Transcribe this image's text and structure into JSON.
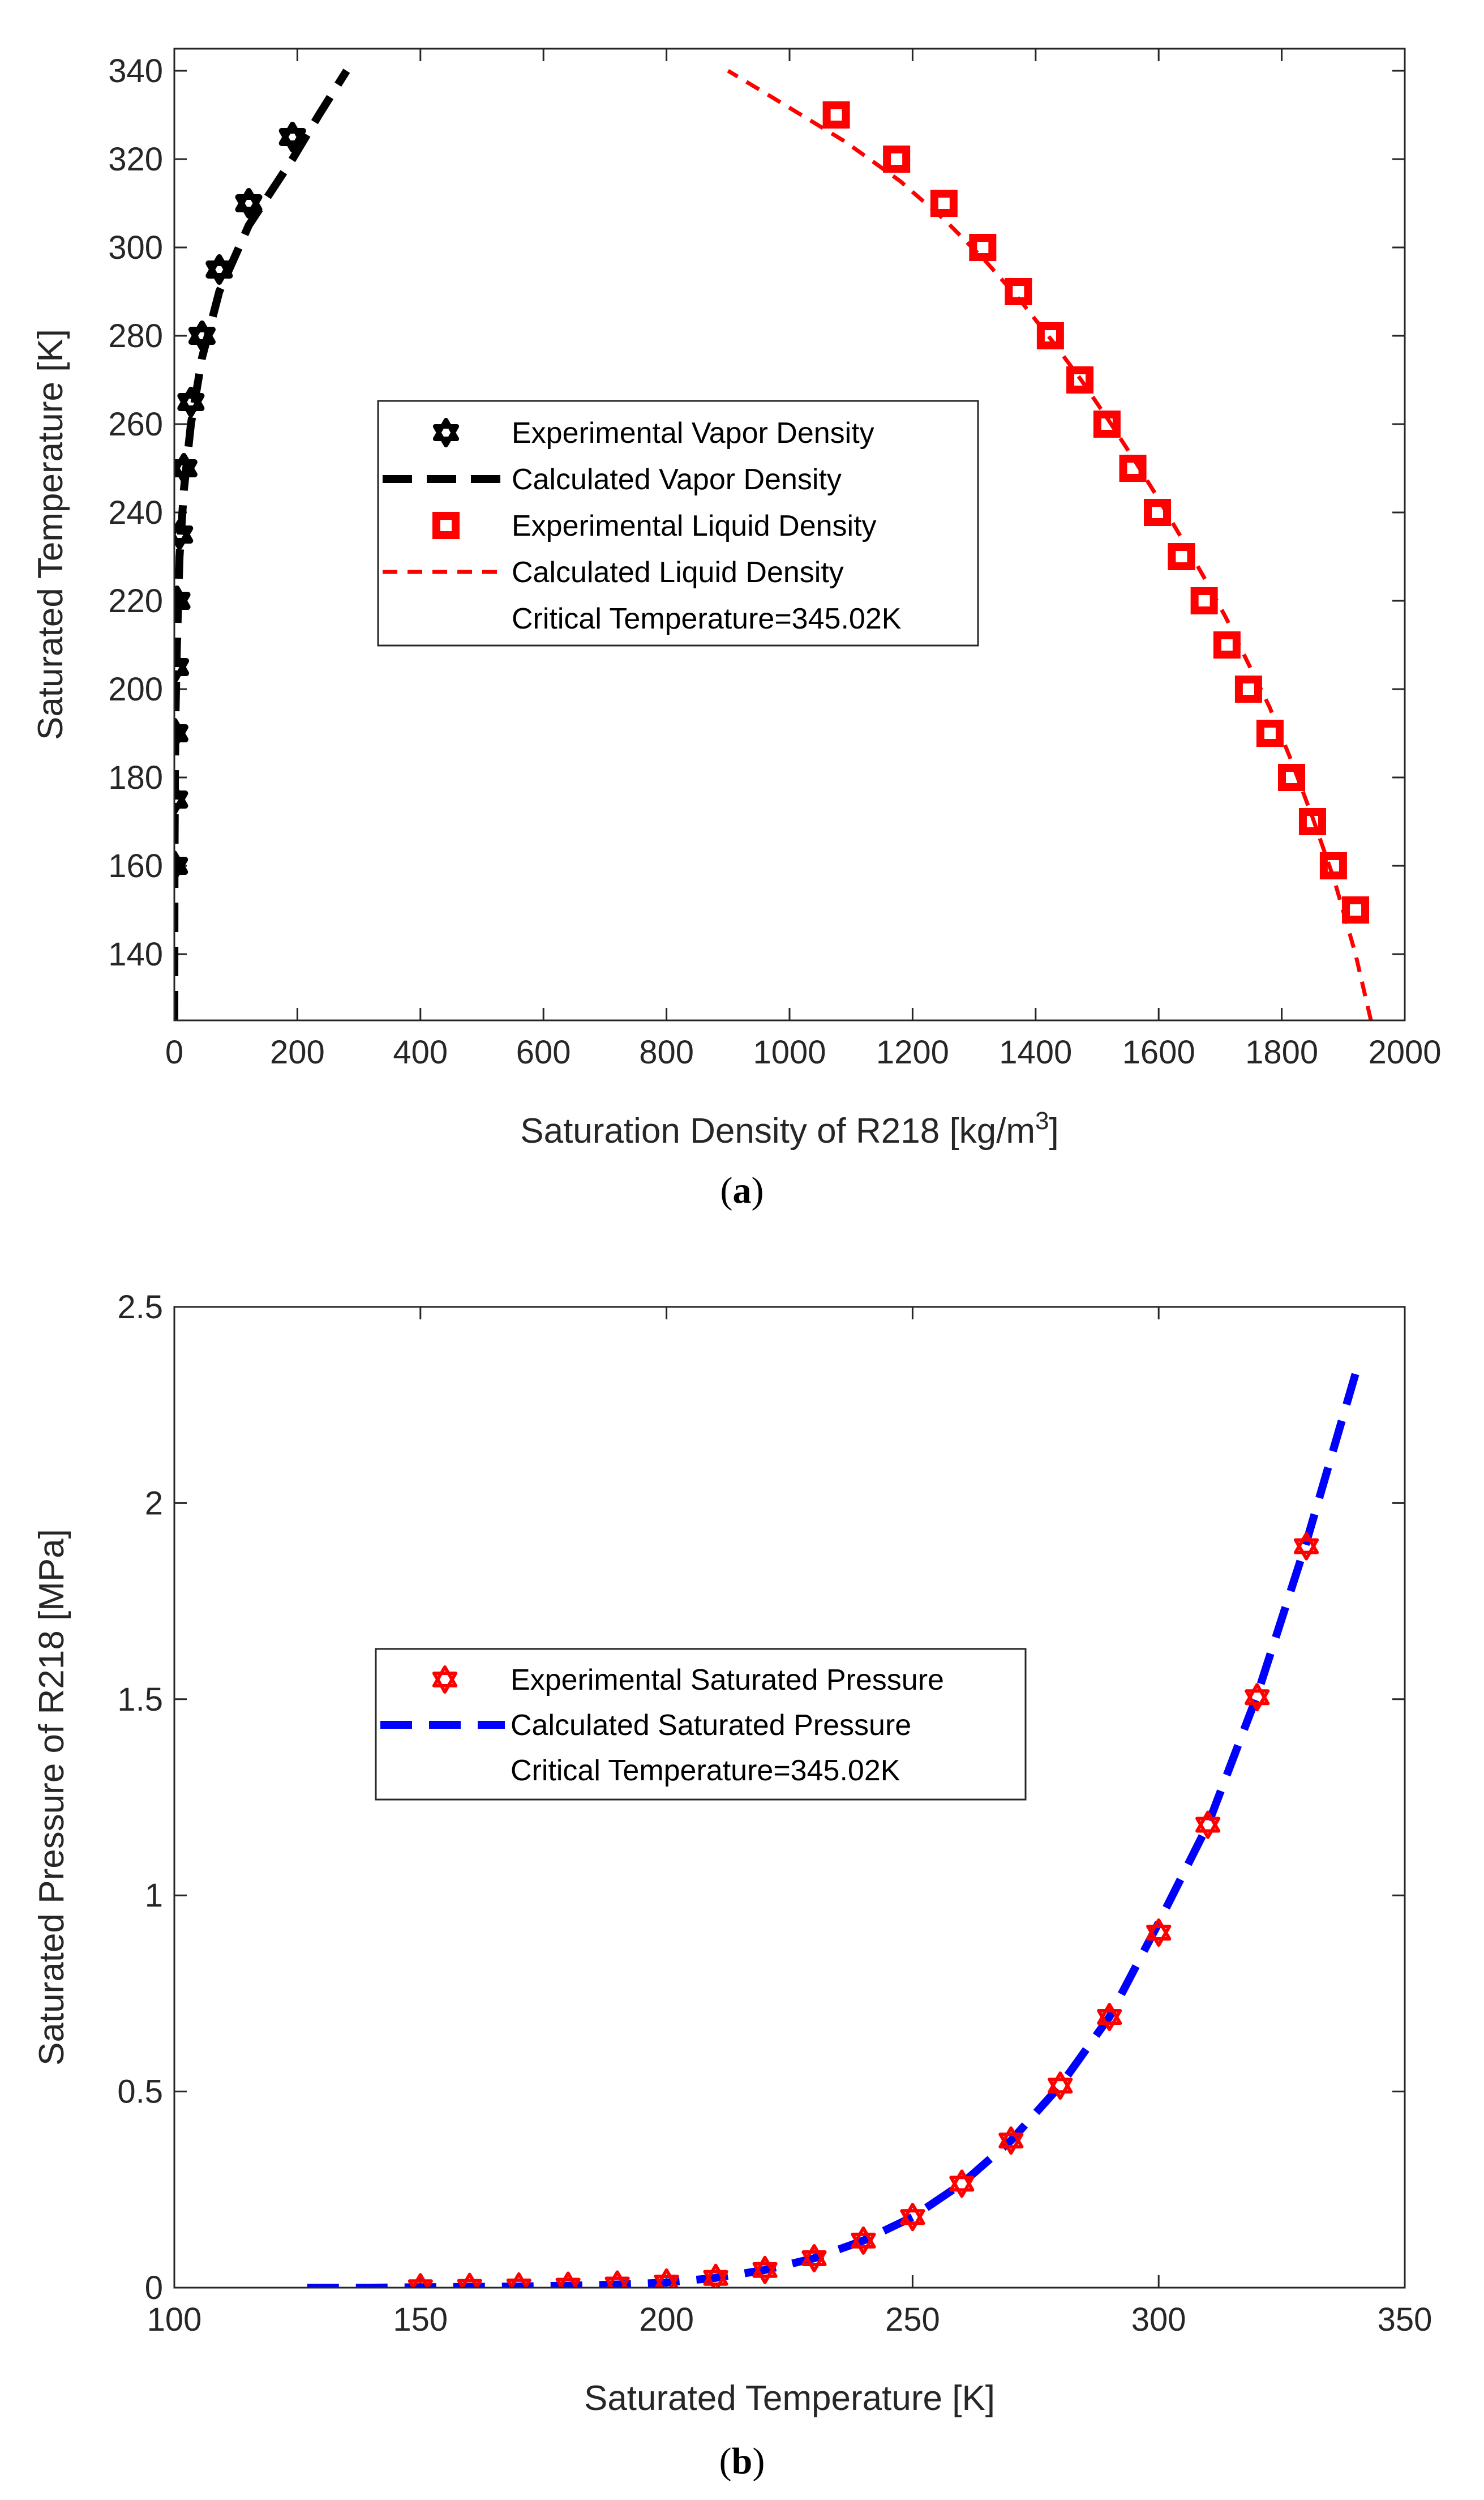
{
  "chart_data": [
    {
      "type": "scatter",
      "panel": "a",
      "caption_letter": "a",
      "xlabel": "Saturation Density of R218 [kg/m",
      "xlabel_superscript": "3",
      "xlabel_suffix": "]",
      "ylabel": "Saturated Temperature [K]",
      "xlim": [
        0,
        2000
      ],
      "ylim": [
        125,
        345
      ],
      "xticks": [
        0,
        200,
        400,
        600,
        800,
        1000,
        1200,
        1400,
        1600,
        1800,
        2000
      ],
      "yticks": [
        140,
        160,
        180,
        200,
        220,
        240,
        260,
        280,
        300,
        320,
        340
      ],
      "legend": {
        "position": "center-left",
        "entries": [
          "Experimental Vapor Density",
          "Calculated Vapor Density",
          "Experimental Liquid Density",
          "Calculated Liquid Density",
          "Critical Temperature=345.02K"
        ]
      },
      "colors": {
        "vapor": "#000000",
        "liquid": "#ff0000"
      },
      "series": [
        {
          "name": "Experimental Vapor Density",
          "style": "hexagram-markers",
          "x": [
            0.1,
            0.3,
            0.8,
            1.9,
            4.2,
            8.5,
            15.5,
            27.0,
            45.0,
            73.0,
            121.0,
            192.0
          ],
          "y": [
            160,
            175,
            190,
            205,
            220,
            235,
            250,
            265,
            280,
            295,
            310,
            325
          ]
        },
        {
          "name": "Calculated Vapor Density",
          "style": "thick-dashed-line",
          "x": [
            0.0,
            0.05,
            0.3,
            1.0,
            2.0,
            4.2,
            8.5,
            15.5,
            27.0,
            45.0,
            73.0,
            121.0,
            192.0,
            235.0,
            280.0
          ],
          "y": [
            125,
            140,
            160,
            180,
            195,
            210,
            230,
            245,
            260,
            275,
            290,
            305,
            320,
            330,
            340
          ]
        },
        {
          "name": "Experimental Liquid Density",
          "style": "square-markers",
          "x": [
            1920,
            1884,
            1850,
            1816,
            1781,
            1746,
            1711,
            1674,
            1637,
            1598,
            1558,
            1516,
            1472,
            1424,
            1372,
            1314,
            1251,
            1174,
            1076
          ],
          "y": [
            150,
            160,
            170,
            180,
            190,
            200,
            210,
            220,
            230,
            240,
            250,
            260,
            270,
            280,
            290,
            300,
            310,
            320,
            330
          ]
        },
        {
          "name": "Calculated Liquid Density",
          "style": "thin-dashed-line",
          "x": [
            1945,
            1920,
            1885,
            1850,
            1815,
            1780,
            1745,
            1710,
            1675,
            1638,
            1600,
            1560,
            1518,
            1474,
            1426,
            1375,
            1318,
            1254,
            1180,
            1090,
            960,
            900
          ],
          "y": [
            125,
            140,
            157,
            171,
            184,
            196,
            206,
            216,
            225,
            234,
            243,
            252,
            261,
            270,
            279,
            288,
            297,
            306,
            315,
            324,
            335,
            340
          ]
        }
      ]
    },
    {
      "type": "scatter",
      "panel": "b",
      "caption_letter": "b",
      "xlabel": "Saturated Temperature [K]",
      "ylabel": "Saturated Pressure of R218 [MPa]",
      "xlim": [
        100,
        350
      ],
      "ylim": [
        0,
        2.5
      ],
      "xticks": [
        100,
        150,
        200,
        250,
        300,
        350
      ],
      "yticks": [
        0,
        0.5,
        1,
        1.5,
        2,
        2.5
      ],
      "legend": {
        "position": "center-left",
        "entries": [
          "Experimental Saturated Pressure",
          "Calculated Saturated Pressure",
          "Critical Temperature=345.02K"
        ]
      },
      "colors": {
        "experimental": "#ff0000",
        "calculated": "#0000ff"
      },
      "series": [
        {
          "name": "Experimental Saturated Pressure",
          "style": "hexagram-markers",
          "x": [
            150,
            160,
            170,
            180,
            190,
            200,
            210,
            220,
            230,
            240,
            250,
            260,
            270,
            280,
            290,
            300,
            310,
            320,
            330
          ],
          "y": [
            0.001,
            0.002,
            0.003,
            0.005,
            0.008,
            0.013,
            0.025,
            0.045,
            0.075,
            0.12,
            0.18,
            0.265,
            0.375,
            0.515,
            0.69,
            0.905,
            1.18,
            1.505,
            1.89
          ]
        },
        {
          "name": "Calculated Saturated Pressure",
          "style": "thick-dashed-line",
          "x": [
            127,
            140,
            150,
            160,
            170,
            180,
            190,
            200,
            210,
            220,
            230,
            240,
            250,
            260,
            270,
            280,
            290,
            300,
            310,
            320,
            330,
            340
          ],
          "y": [
            0.0,
            0.0,
            0.001,
            0.002,
            0.003,
            0.005,
            0.008,
            0.013,
            0.025,
            0.045,
            0.075,
            0.12,
            0.18,
            0.265,
            0.375,
            0.515,
            0.69,
            0.93,
            1.18,
            1.51,
            1.9,
            2.33
          ]
        }
      ]
    }
  ]
}
